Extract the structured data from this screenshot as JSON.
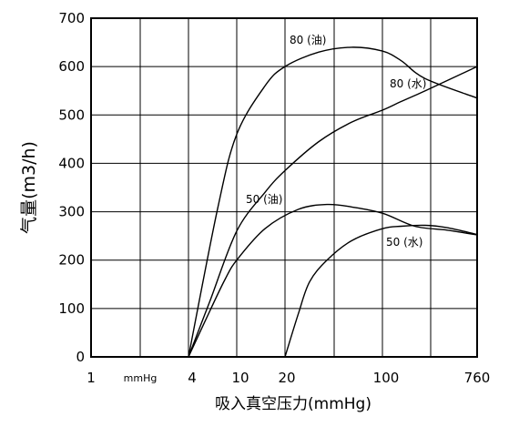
{
  "chart_data": {
    "type": "line",
    "title": "",
    "xlabel": "吸入真空压力(mmHg)",
    "ylabel": "气量(m3/h)",
    "ylim": [
      0,
      700
    ],
    "yticks": [
      "0",
      "100",
      "200",
      "300",
      "400",
      "500",
      "600",
      "700"
    ],
    "xticks": [
      "1",
      "mmHg",
      "4",
      "10",
      "20",
      "100",
      "760"
    ],
    "grid": true,
    "series": [
      {
        "name": "80 (油)",
        "points": [
          [
            4,
            0
          ],
          [
            7,
            310
          ],
          [
            10,
            460
          ],
          [
            15,
            560
          ],
          [
            20,
            600
          ],
          [
            35,
            630
          ],
          [
            60,
            640
          ],
          [
            100,
            632
          ],
          [
            150,
            612
          ],
          [
            250,
            575
          ],
          [
            760,
            535
          ]
        ]
      },
      {
        "name": "80 (水)",
        "points": [
          [
            4,
            0
          ],
          [
            6,
            115
          ],
          [
            10,
            260
          ],
          [
            15,
            340
          ],
          [
            20,
            385
          ],
          [
            35,
            445
          ],
          [
            60,
            485
          ],
          [
            100,
            510
          ],
          [
            150,
            528
          ],
          [
            250,
            550
          ],
          [
            760,
            600
          ]
        ]
      },
      {
        "name": "50 (油)",
        "points": [
          [
            4,
            0
          ],
          [
            6,
            95
          ],
          [
            8,
            160
          ],
          [
            10,
            200
          ],
          [
            15,
            265
          ],
          [
            25,
            305
          ],
          [
            40,
            315
          ],
          [
            60,
            310
          ],
          [
            100,
            297
          ],
          [
            200,
            270
          ],
          [
            400,
            262
          ],
          [
            760,
            252
          ]
        ]
      },
      {
        "name": "50 (水)",
        "points": [
          [
            20,
            0
          ],
          [
            25,
            90
          ],
          [
            30,
            155
          ],
          [
            40,
            200
          ],
          [
            60,
            240
          ],
          [
            100,
            265
          ],
          [
            150,
            270
          ],
          [
            250,
            272
          ],
          [
            400,
            267
          ],
          [
            760,
            253
          ]
        ]
      }
    ]
  }
}
